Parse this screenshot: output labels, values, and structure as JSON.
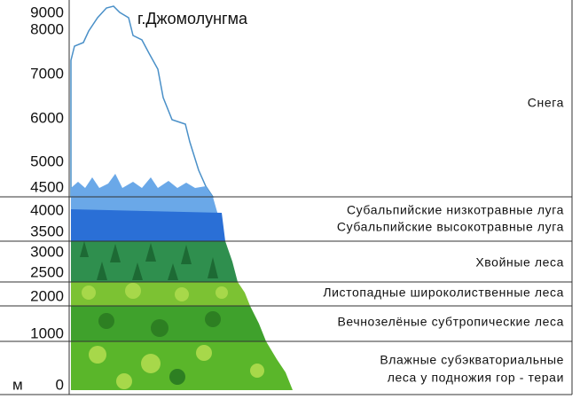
{
  "peak_label": "г.Джомолунгма",
  "unit": "м",
  "altitudes": [
    "9000",
    "8000",
    "7000",
    "6000",
    "5000",
    "4500",
    "4000",
    "3500",
    "3000",
    "2500",
    "2000",
    "1000",
    "0"
  ],
  "zones": [
    "Снега",
    "Субальпийские низкотравные луга",
    "Субальпийские высокотравные луга",
    "Хвойные леса",
    "Листопадные широколиственные леса",
    "Вечнозелёные субтропические леса",
    "Влажные субэкваториальные",
    "леса у подножия гор - тераи"
  ]
}
